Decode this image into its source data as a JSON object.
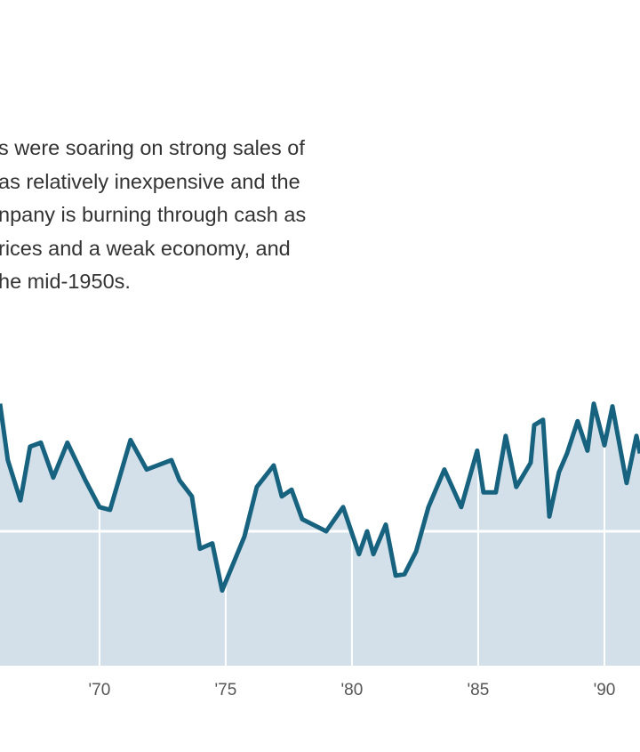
{
  "intro_lines": [
    "s were soaring on strong sales of",
    "as relatively inexpensive and the",
    "npany is burning through cash as",
    "rices and a weak economy, and",
    "he mid-1950s."
  ],
  "colors": {
    "line": "#17627f",
    "fill": "#d3e0ea",
    "grid": "#ffffff"
  },
  "chart_data": {
    "type": "area",
    "title": "",
    "xlabel": "",
    "ylabel": "",
    "xlim": [
      1966.06,
      1991.41
    ],
    "ylim": [
      0,
      204
    ],
    "grid": true,
    "gridline_y": [
      100
    ],
    "x_ticks": [
      1970,
      1975,
      1980,
      1985,
      1990
    ],
    "x_tick_labels": [
      "'70",
      "'75",
      "'80",
      "'85",
      "'90"
    ],
    "x": [
      1966.06,
      1966.37,
      1966.87,
      1967.25,
      1967.68,
      1968.17,
      1968.73,
      1969.44,
      1970.0,
      1970.42,
      1971.23,
      1971.87,
      1972.85,
      1973.17,
      1973.66,
      1973.98,
      1974.47,
      1974.86,
      1975.74,
      1976.23,
      1976.9,
      1977.22,
      1977.61,
      1978.03,
      1978.98,
      1979.65,
      1980.28,
      1980.6,
      1980.85,
      1981.34,
      1981.73,
      1982.08,
      1982.54,
      1983.03,
      1983.66,
      1984.33,
      1984.96,
      1985.21,
      1985.7,
      1986.09,
      1986.51,
      1987.08,
      1987.22,
      1987.57,
      1987.82,
      1988.2,
      1988.52,
      1988.94,
      1989.33,
      1989.58,
      1990.0,
      1990.32,
      1990.88,
      1991.27,
      1991.41
    ],
    "values": [
      195,
      153,
      123,
      163,
      166,
      140,
      166,
      138,
      118,
      116,
      168,
      146,
      153,
      138,
      126,
      87,
      91,
      56,
      96,
      133,
      149,
      126,
      131,
      109,
      100,
      118,
      83,
      100,
      83,
      105,
      67,
      68,
      85,
      118,
      146,
      118,
      160,
      129,
      129,
      171,
      133,
      151,
      179,
      183,
      111,
      144,
      158,
      182,
      160,
      195,
      164,
      193,
      136,
      171,
      158
    ]
  }
}
